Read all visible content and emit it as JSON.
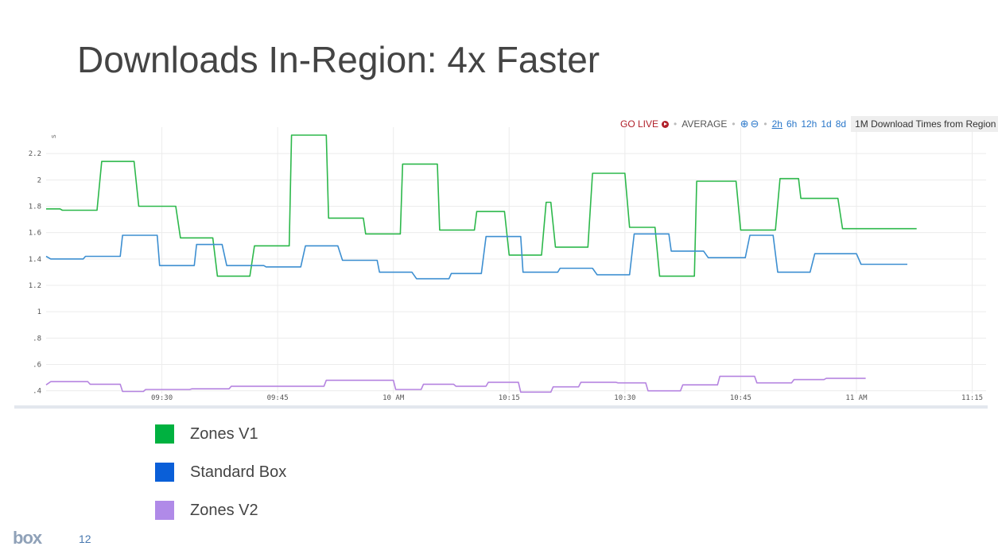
{
  "slide": {
    "title": "Downloads In-Region: 4x Faster",
    "page_number": "12",
    "logo_text": "box"
  },
  "toolbar": {
    "go_live": "GO LIVE",
    "average": "AVERAGE",
    "ranges": [
      "2h",
      "6h",
      "12h",
      "1d",
      "8d"
    ],
    "active_range": "2h",
    "chart_title": "1M Download Times from Region"
  },
  "legend": [
    {
      "label": "Zones V1",
      "color": "#00b140"
    },
    {
      "label": "Standard Box",
      "color": "#0a5fd8"
    },
    {
      "label": "Zones V2",
      "color": "#b08ae8"
    }
  ],
  "chart_data": {
    "type": "line",
    "title": "1M Download Times from Region",
    "ylabel": "s",
    "ylim": [
      0.38,
      2.4
    ],
    "yticks": [
      {
        "v": 2.2,
        "label": "2.2"
      },
      {
        "v": 2,
        "label": "2"
      },
      {
        "v": 1.8,
        "label": "1.8"
      },
      {
        "v": 1.6,
        "label": "1.6"
      },
      {
        "v": 1.4,
        "label": "1.4"
      },
      {
        "v": 1.2,
        "label": "1.2"
      },
      {
        "v": 1,
        "label": "1"
      },
      {
        "v": 0.8,
        "label": ".8"
      },
      {
        "v": 0.6,
        "label": ".6"
      },
      {
        "v": 0.4,
        "label": ".4"
      }
    ],
    "xlim": [
      9.25,
      11.28
    ],
    "xticks": [
      {
        "v": 9.5,
        "label": "09:30"
      },
      {
        "v": 9.75,
        "label": "09:45"
      },
      {
        "v": 10.0,
        "label": "10 AM"
      },
      {
        "v": 10.25,
        "label": "10:15"
      },
      {
        "v": 10.5,
        "label": "10:30"
      },
      {
        "v": 10.75,
        "label": "10:45"
      },
      {
        "v": 11.0,
        "label": "11 AM"
      },
      {
        "v": 11.25,
        "label": "11:15"
      }
    ],
    "grid": true,
    "series": [
      {
        "name": "Zones V1",
        "color": "#2db84b",
        "points": [
          [
            9.25,
            1.78
          ],
          [
            9.28,
            1.78
          ],
          [
            9.285,
            1.77
          ],
          [
            9.36,
            1.77
          ],
          [
            9.37,
            2.14
          ],
          [
            9.44,
            2.14
          ],
          [
            9.45,
            1.8
          ],
          [
            9.53,
            1.8
          ],
          [
            9.54,
            1.56
          ],
          [
            9.61,
            1.56
          ],
          [
            9.62,
            1.27
          ],
          [
            9.69,
            1.27
          ],
          [
            9.7,
            1.5
          ],
          [
            9.775,
            1.5
          ],
          [
            9.78,
            2.34
          ],
          [
            9.855,
            2.34
          ],
          [
            9.86,
            1.71
          ],
          [
            9.935,
            1.71
          ],
          [
            9.94,
            1.59
          ],
          [
            10.015,
            1.59
          ],
          [
            10.02,
            2.12
          ],
          [
            10.095,
            2.12
          ],
          [
            10.1,
            1.62
          ],
          [
            10.175,
            1.62
          ],
          [
            10.18,
            1.76
          ],
          [
            10.24,
            1.76
          ],
          [
            10.25,
            1.43
          ],
          [
            10.32,
            1.43
          ],
          [
            10.33,
            1.83
          ],
          [
            10.34,
            1.83
          ],
          [
            10.35,
            1.49
          ],
          [
            10.42,
            1.49
          ],
          [
            10.43,
            2.05
          ],
          [
            10.5,
            2.05
          ],
          [
            10.51,
            1.64
          ],
          [
            10.565,
            1.64
          ],
          [
            10.575,
            1.27
          ],
          [
            10.65,
            1.27
          ],
          [
            10.655,
            1.99
          ],
          [
            10.74,
            1.99
          ],
          [
            10.75,
            1.62
          ],
          [
            10.825,
            1.62
          ],
          [
            10.835,
            2.01
          ],
          [
            10.875,
            2.01
          ],
          [
            10.88,
            1.86
          ],
          [
            10.96,
            1.86
          ],
          [
            10.97,
            1.63
          ],
          [
            11.13,
            1.63
          ]
        ]
      },
      {
        "name": "Standard Box",
        "color": "#3d8fd1",
        "points": [
          [
            9.25,
            1.42
          ],
          [
            9.26,
            1.4
          ],
          [
            9.33,
            1.4
          ],
          [
            9.335,
            1.42
          ],
          [
            9.41,
            1.42
          ],
          [
            9.415,
            1.58
          ],
          [
            9.49,
            1.58
          ],
          [
            9.495,
            1.35
          ],
          [
            9.57,
            1.35
          ],
          [
            9.575,
            1.51
          ],
          [
            9.63,
            1.51
          ],
          [
            9.64,
            1.35
          ],
          [
            9.72,
            1.35
          ],
          [
            9.725,
            1.34
          ],
          [
            9.8,
            1.34
          ],
          [
            9.81,
            1.5
          ],
          [
            9.88,
            1.5
          ],
          [
            9.89,
            1.39
          ],
          [
            9.965,
            1.39
          ],
          [
            9.97,
            1.3
          ],
          [
            10.04,
            1.3
          ],
          [
            10.05,
            1.25
          ],
          [
            10.12,
            1.25
          ],
          [
            10.125,
            1.29
          ],
          [
            10.19,
            1.29
          ],
          [
            10.2,
            1.57
          ],
          [
            10.275,
            1.57
          ],
          [
            10.28,
            1.3
          ],
          [
            10.355,
            1.3
          ],
          [
            10.36,
            1.33
          ],
          [
            10.43,
            1.33
          ],
          [
            10.44,
            1.28
          ],
          [
            10.51,
            1.28
          ],
          [
            10.52,
            1.59
          ],
          [
            10.595,
            1.59
          ],
          [
            10.6,
            1.46
          ],
          [
            10.67,
            1.46
          ],
          [
            10.68,
            1.41
          ],
          [
            10.76,
            1.41
          ],
          [
            10.77,
            1.58
          ],
          [
            10.82,
            1.58
          ],
          [
            10.83,
            1.3
          ],
          [
            10.9,
            1.3
          ],
          [
            10.91,
            1.44
          ],
          [
            11.0,
            1.44
          ],
          [
            11.01,
            1.36
          ],
          [
            11.11,
            1.36
          ]
        ]
      },
      {
        "name": "Zones V2",
        "color": "#b584e0",
        "points": [
          [
            9.25,
            0.445
          ],
          [
            9.26,
            0.47
          ],
          [
            9.34,
            0.47
          ],
          [
            9.345,
            0.45
          ],
          [
            9.41,
            0.45
          ],
          [
            9.415,
            0.395
          ],
          [
            9.46,
            0.395
          ],
          [
            9.465,
            0.41
          ],
          [
            9.56,
            0.41
          ],
          [
            9.565,
            0.415
          ],
          [
            9.645,
            0.415
          ],
          [
            9.65,
            0.435
          ],
          [
            9.85,
            0.435
          ],
          [
            9.855,
            0.48
          ],
          [
            10.0,
            0.48
          ],
          [
            10.005,
            0.41
          ],
          [
            10.06,
            0.41
          ],
          [
            10.065,
            0.45
          ],
          [
            10.13,
            0.45
          ],
          [
            10.135,
            0.435
          ],
          [
            10.2,
            0.435
          ],
          [
            10.205,
            0.465
          ],
          [
            10.27,
            0.465
          ],
          [
            10.275,
            0.39
          ],
          [
            10.34,
            0.39
          ],
          [
            10.345,
            0.43
          ],
          [
            10.4,
            0.43
          ],
          [
            10.405,
            0.465
          ],
          [
            10.48,
            0.465
          ],
          [
            10.485,
            0.46
          ],
          [
            10.545,
            0.46
          ],
          [
            10.55,
            0.4
          ],
          [
            10.62,
            0.4
          ],
          [
            10.625,
            0.445
          ],
          [
            10.7,
            0.445
          ],
          [
            10.705,
            0.51
          ],
          [
            10.78,
            0.51
          ],
          [
            10.785,
            0.46
          ],
          [
            10.86,
            0.46
          ],
          [
            10.865,
            0.485
          ],
          [
            10.93,
            0.485
          ],
          [
            10.935,
            0.495
          ],
          [
            11.02,
            0.495
          ]
        ]
      }
    ]
  }
}
